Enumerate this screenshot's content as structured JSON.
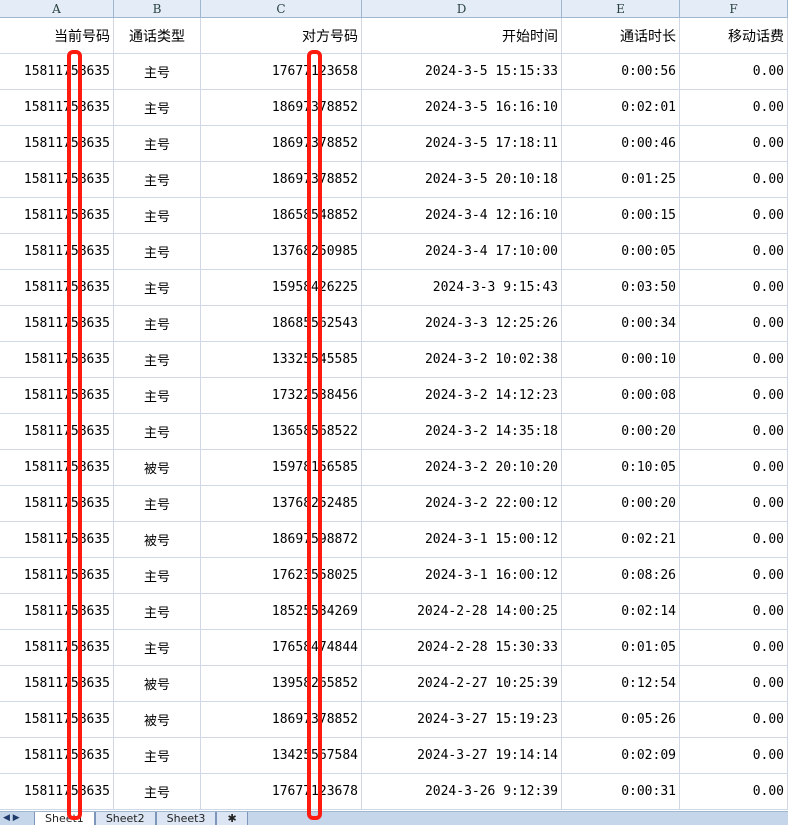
{
  "columns": [
    "A",
    "B",
    "C",
    "D",
    "E",
    "F"
  ],
  "headers": [
    "当前号码",
    "通话类型",
    "对方号码",
    "开始时间",
    "通话时长",
    "移动话费"
  ],
  "rows": [
    [
      "15811758635",
      "主号",
      "17677123658",
      "2024-3-5 15:15:33",
      "0:00:56",
      "0.00"
    ],
    [
      "15811758635",
      "主号",
      "18697378852",
      "2024-3-5 16:16:10",
      "0:02:01",
      "0.00"
    ],
    [
      "15811758635",
      "主号",
      "18697378852",
      "2024-3-5 17:18:11",
      "0:00:46",
      "0.00"
    ],
    [
      "15811758635",
      "主号",
      "18697378852",
      "2024-3-5 20:10:18",
      "0:01:25",
      "0.00"
    ],
    [
      "15811758635",
      "主号",
      "18658548852",
      "2024-3-4 12:16:10",
      "0:00:15",
      "0.00"
    ],
    [
      "15811758635",
      "主号",
      "13768250985",
      "2024-3-4 17:10:00",
      "0:00:05",
      "0.00"
    ],
    [
      "15811758635",
      "主号",
      "15958426225",
      "2024-3-3 9:15:43",
      "0:03:50",
      "0.00"
    ],
    [
      "15811758635",
      "主号",
      "18685562543",
      "2024-3-3 12:25:26",
      "0:00:34",
      "0.00"
    ],
    [
      "15811758635",
      "主号",
      "13325545585",
      "2024-3-2 10:02:38",
      "0:00:10",
      "0.00"
    ],
    [
      "15811758635",
      "主号",
      "17322538456",
      "2024-3-2 14:12:23",
      "0:00:08",
      "0.00"
    ],
    [
      "15811758635",
      "主号",
      "13658568522",
      "2024-3-2 14:35:18",
      "0:00:20",
      "0.00"
    ],
    [
      "15811758635",
      "被号",
      "15978156585",
      "2024-3-2 20:10:20",
      "0:10:05",
      "0.00"
    ],
    [
      "15811758635",
      "主号",
      "13768252485",
      "2024-3-2 22:00:12",
      "0:00:20",
      "0.00"
    ],
    [
      "15811758635",
      "被号",
      "18697598872",
      "2024-3-1 15:00:12",
      "0:02:21",
      "0.00"
    ],
    [
      "15811758635",
      "主号",
      "17623558025",
      "2024-3-1 16:00:12",
      "0:08:26",
      "0.00"
    ],
    [
      "15811758635",
      "主号",
      "18525534269",
      "2024-2-28 14:00:25",
      "0:02:14",
      "0.00"
    ],
    [
      "15811758635",
      "主号",
      "17658474844",
      "2024-2-28 15:30:33",
      "0:01:05",
      "0.00"
    ],
    [
      "15811758635",
      "被号",
      "13958265852",
      "2024-2-27 10:25:39",
      "0:12:54",
      "0.00"
    ],
    [
      "15811758635",
      "被号",
      "18697378852",
      "2024-3-27 15:19:23",
      "0:05:26",
      "0.00"
    ],
    [
      "15811758635",
      "主号",
      "13425567584",
      "2024-3-27 19:14:14",
      "0:02:09",
      "0.00"
    ],
    [
      "15811758635",
      "主号",
      "17677123678",
      "2024-3-26 9:12:39",
      "0:00:31",
      "0.00"
    ]
  ],
  "sheet_tabs": [
    "Sheet1",
    "Sheet2",
    "Sheet3"
  ],
  "nav_icons": "◀ ▶",
  "redaction_color": "#ff1a0f"
}
